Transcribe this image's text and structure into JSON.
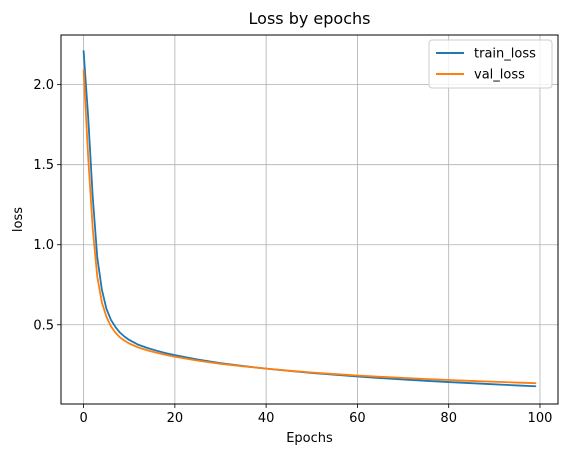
{
  "chart_data": {
    "type": "line",
    "title": "Loss by epochs",
    "xlabel": "Epochs",
    "ylabel": "loss",
    "xlim": [
      -4.95,
      103.95
    ],
    "ylim": [
      0.005,
      2.31
    ],
    "xticks": [
      0,
      20,
      40,
      60,
      80,
      100
    ],
    "yticks": [
      0.5,
      1.0,
      1.5,
      2.0
    ],
    "ytick_labels": [
      "0.5",
      "1.0",
      "1.5",
      "2.0"
    ],
    "grid": true,
    "legend_position": "top-right",
    "x": [
      0,
      1,
      2,
      3,
      4,
      5,
      6,
      7,
      8,
      9,
      10,
      12,
      14,
      16,
      18,
      20,
      25,
      30,
      35,
      40,
      45,
      50,
      55,
      60,
      65,
      70,
      75,
      80,
      85,
      90,
      95,
      99
    ],
    "series": [
      {
        "name": "train_loss",
        "color": "#1f77b4",
        "values": [
          2.21,
          1.8,
          1.3,
          0.92,
          0.72,
          0.6,
          0.53,
          0.485,
          0.45,
          0.425,
          0.405,
          0.375,
          0.355,
          0.338,
          0.323,
          0.31,
          0.283,
          0.26,
          0.242,
          0.226,
          0.212,
          0.199,
          0.188,
          0.177,
          0.167,
          0.158,
          0.15,
          0.142,
          0.135,
          0.128,
          0.121,
          0.116
        ]
      },
      {
        "name": "val_loss",
        "color": "#ff7f0e",
        "values": [
          2.09,
          1.55,
          1.1,
          0.8,
          0.64,
          0.55,
          0.49,
          0.45,
          0.42,
          0.4,
          0.383,
          0.358,
          0.34,
          0.325,
          0.312,
          0.3,
          0.276,
          0.256,
          0.24,
          0.226,
          0.213,
          0.202,
          0.192,
          0.183,
          0.175,
          0.168,
          0.161,
          0.155,
          0.149,
          0.144,
          0.139,
          0.135
        ]
      }
    ]
  }
}
